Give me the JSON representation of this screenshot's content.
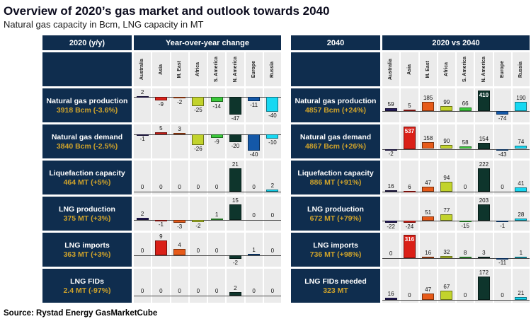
{
  "header": {
    "title": "Overview of 2020’s gas market and outlook towards 2040",
    "subtitle": "Natural gas capacity in Bcm, LNG capacity in MT"
  },
  "source": {
    "text": "Source: Rystad Energy GasMarketCube"
  },
  "colors": {
    "panel_navy": "#0f2d4e",
    "row_value_gold": "#cfa32b",
    "chart_bg": "#ebebeb",
    "region_colors": [
      "#251a5e",
      "#da2018",
      "#e65a19",
      "#c2d32c",
      "#3bc83b",
      "#0e352c",
      "#1458a8",
      "#17d8f2"
    ]
  },
  "chart_data": [
    {
      "type": "bar",
      "panel_title": "2020 (y/y)",
      "chart_title": "Year-over-year change",
      "categories": [
        "Australia",
        "Asia",
        "M. East",
        "Africa",
        "S. America",
        "N. America",
        "Europe",
        "Russia"
      ],
      "rows": [
        {
          "label": "Natural gas production",
          "value": "3918 Bcm (-3.6%)",
          "values": [
            2,
            -9,
            -2,
            -25,
            -14,
            -47,
            -11,
            -40
          ]
        },
        {
          "label": "Natural gas demand",
          "value": "3840 Bcm (-2.5%)",
          "values": [
            -1,
            5,
            3,
            -26,
            -9,
            -20,
            -40,
            -10
          ]
        },
        {
          "label": "Liquefaction capacity",
          "value": "464 MT (+5%)",
          "values": [
            0,
            0,
            0,
            0,
            0,
            21,
            0,
            2
          ]
        },
        {
          "label": "LNG production",
          "value": "375 MT (+3%)",
          "values": [
            2,
            -1,
            -3,
            -2,
            1,
            15,
            0,
            0
          ]
        },
        {
          "label": "LNG imports",
          "value": "363 MT (+3%)",
          "values": [
            0,
            9,
            4,
            0,
            0,
            -2,
            1,
            0
          ]
        },
        {
          "label": "LNG FIDs",
          "value": "2.4 MT (-97%)",
          "values": [
            0,
            0,
            0,
            0,
            0,
            2,
            0,
            0
          ]
        }
      ]
    },
    {
      "type": "bar",
      "panel_title": "2040",
      "chart_title": "2020 vs 2040",
      "categories": [
        "Australia",
        "Asia",
        "M. East",
        "Africa",
        "S. America",
        "N. America",
        "Europe",
        "Russia"
      ],
      "rows": [
        {
          "label": "Natural gas production",
          "value": "4857 Bcm (+24%)",
          "values": [
            59,
            5,
            185,
            99,
            66,
            410,
            -74,
            190
          ],
          "label_inside": [
            5
          ]
        },
        {
          "label": "Natural gas demand",
          "value": "4867 Bcm (+26%)",
          "values": [
            -2,
            537,
            158,
            90,
            58,
            154,
            -43,
            74
          ],
          "label_inside": [
            1
          ]
        },
        {
          "label": "Liquefaction capacity",
          "value": "886 MT (+91%)",
          "values": [
            16,
            6,
            47,
            94,
            0,
            222,
            0,
            41
          ]
        },
        {
          "label": "LNG production",
          "value": "672 MT (+79%)",
          "values": [
            -22,
            -24,
            51,
            77,
            -15,
            203,
            -1,
            28
          ]
        },
        {
          "label": "LNG imports",
          "value": "736 MT (+98%)",
          "values": [
            0,
            316,
            16,
            32,
            8,
            3,
            -11,
            1
          ],
          "label_inside": [
            1
          ]
        },
        {
          "label": "LNG FIDs needed",
          "value": "323 MT",
          "values": [
            16,
            0,
            47,
            67,
            0,
            172,
            0,
            21
          ]
        }
      ]
    }
  ]
}
